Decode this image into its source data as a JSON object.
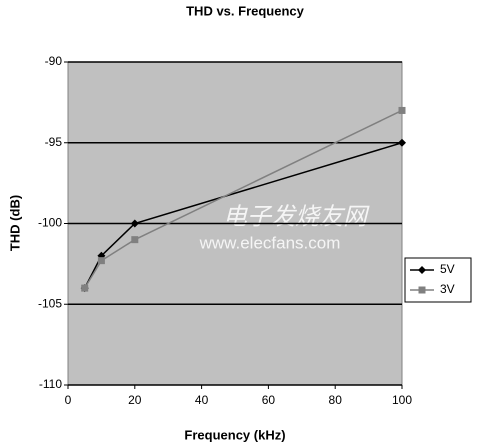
{
  "chart_data": {
    "type": "line",
    "title": "THD vs. Frequency",
    "x_label": "Frequency (kHz)",
    "y_label": "THD (dB)",
    "series": [
      {
        "name": "5V",
        "color": "#000000",
        "marker": "diamond",
        "x": [
          5,
          10,
          20,
          100
        ],
        "values": [
          -104,
          -102,
          -100,
          -95
        ]
      },
      {
        "name": "3V",
        "color": "#808080",
        "marker": "square",
        "x": [
          5,
          10,
          20,
          100
        ],
        "values": [
          -104,
          -102.3,
          -101,
          -93
        ]
      }
    ],
    "xlim": [
      0,
      100
    ],
    "xticks": [
      0,
      20,
      40,
      60,
      80,
      100
    ],
    "ylim": [
      -110,
      -90
    ],
    "yticks": [
      -110,
      -105,
      -100,
      -95,
      -90
    ],
    "grid": true,
    "legend": "right",
    "watermark": [
      "电子发烧友网",
      "www.elecfans.com"
    ]
  }
}
